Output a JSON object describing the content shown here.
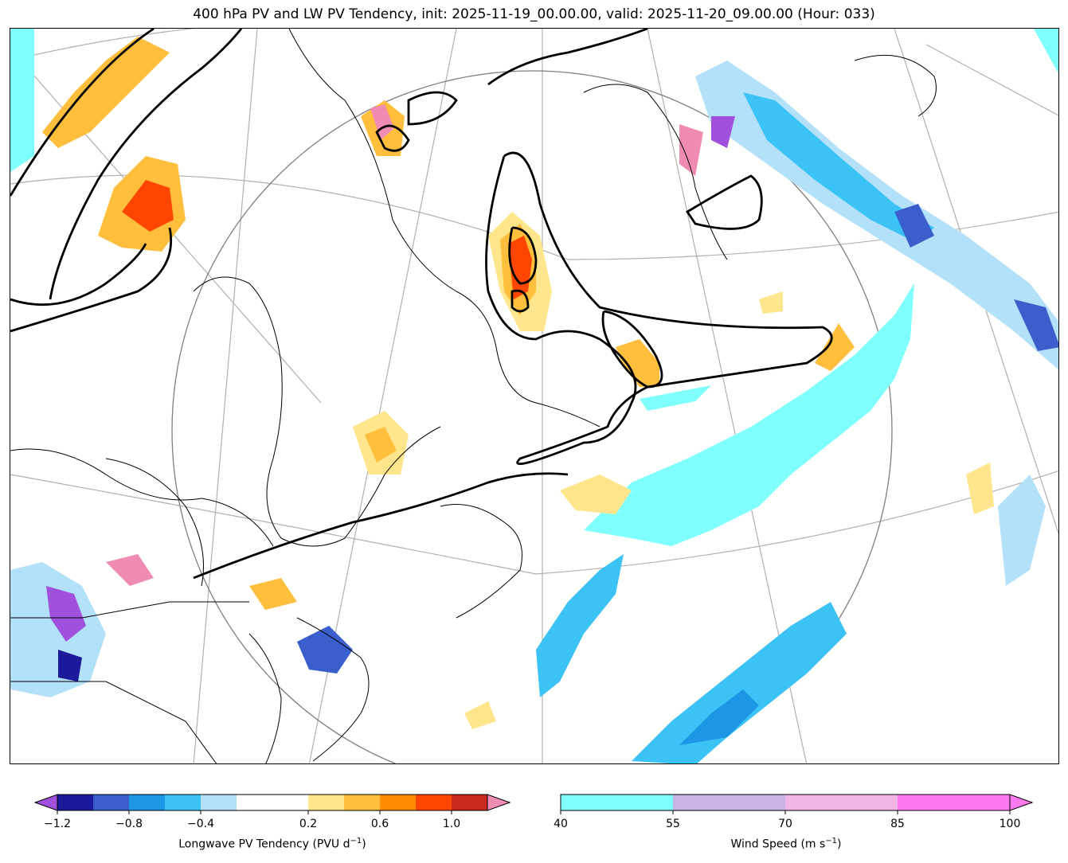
{
  "figure": {
    "title": "400 hPa PV and LW PV Tendency, init: 2025-11-19_00.00.00, valid: 2025-11-20_09.00.00 (Hour: 033)"
  },
  "chart_data": [
    {
      "type": "heatmap",
      "name": "Longwave PV Tendency",
      "colorbar": {
        "label": "Longwave PV Tendency (PVU d",
        "label_sup": "−1",
        "label_close": ")",
        "levels": [
          -1.2,
          -1.0,
          -0.8,
          -0.6,
          -0.4,
          -0.2,
          0.2,
          0.4,
          0.6,
          0.8,
          1.0,
          1.2
        ],
        "tick_labels": [
          "−1.2",
          "−0.8",
          "−0.4",
          "0.2",
          "0.6",
          "1.0"
        ],
        "tick_values": [
          -1.2,
          -0.8,
          -0.4,
          0.2,
          0.6,
          1.0
        ],
        "colors": [
          "#1a1a9a",
          "#3a5fcd",
          "#1e96e6",
          "#3cc3f5",
          "#b4e1fa",
          "#ffffff",
          "#ffe68c",
          "#ffbe3c",
          "#ff8c00",
          "#ff4600",
          "#c8281e"
        ],
        "under_color": "#a050dc",
        "over_color": "#f08cb4",
        "extend": "both"
      }
    },
    {
      "type": "heatmap",
      "name": "Wind Speed",
      "colorbar": {
        "label": "Wind Speed (m s",
        "label_sup": "−1",
        "label_close": ")",
        "levels": [
          40,
          55,
          70,
          85,
          100
        ],
        "tick_labels": [
          "40",
          "55",
          "70",
          "85",
          "100"
        ],
        "tick_values": [
          40,
          55,
          70,
          85,
          100
        ],
        "colors": [
          "#80ffff",
          "#c8b4e6",
          "#f0b4e6",
          "#ff78f0"
        ],
        "over_color": "#ff78f0",
        "extend": "max"
      }
    }
  ]
}
